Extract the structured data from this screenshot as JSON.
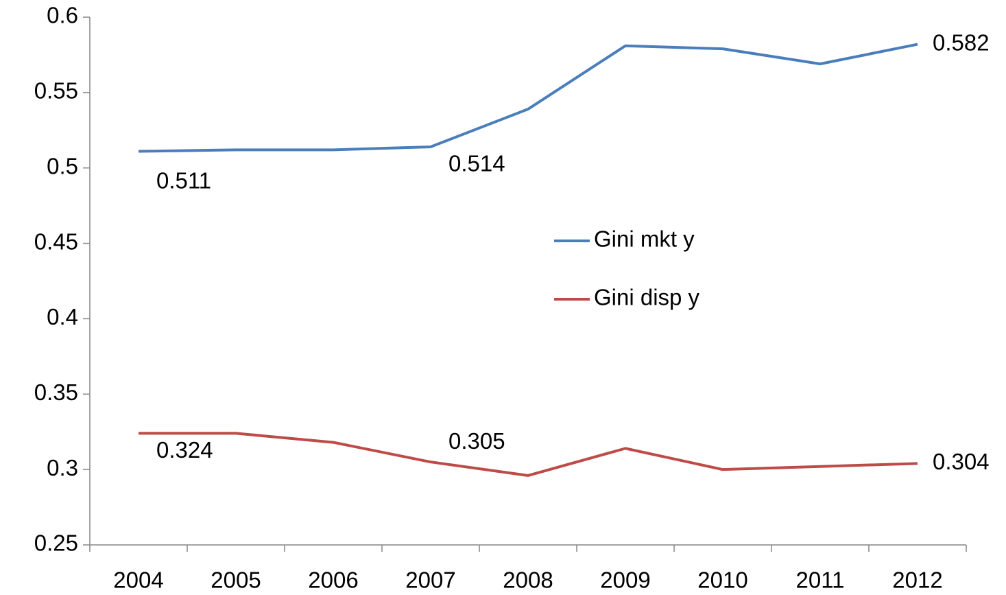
{
  "chart_data": {
    "type": "line",
    "categories": [
      "2004",
      "2005",
      "2006",
      "2007",
      "2008",
      "2009",
      "2010",
      "2011",
      "2012"
    ],
    "series": [
      {
        "name": "Gini mkt y",
        "color": "#4a7ebb",
        "values": [
          0.511,
          0.512,
          0.512,
          0.514,
          0.539,
          0.581,
          0.579,
          0.569,
          0.582
        ],
        "value_labels": [
          "0.511",
          null,
          null,
          "0.514",
          null,
          null,
          null,
          null,
          "0.582"
        ]
      },
      {
        "name": "Gini disp y",
        "color": "#be4b48",
        "values": [
          0.324,
          0.324,
          0.318,
          0.305,
          0.296,
          0.314,
          0.3,
          0.302,
          0.304
        ],
        "value_labels": [
          "0.324",
          null,
          null,
          "0.305",
          null,
          null,
          null,
          null,
          "0.304"
        ]
      }
    ],
    "ylim": [
      0.25,
      0.6
    ],
    "yticks": [
      0.25,
      0.3,
      0.35,
      0.4,
      0.45,
      0.5,
      0.55,
      0.6
    ],
    "legend": "center",
    "grid": false
  }
}
